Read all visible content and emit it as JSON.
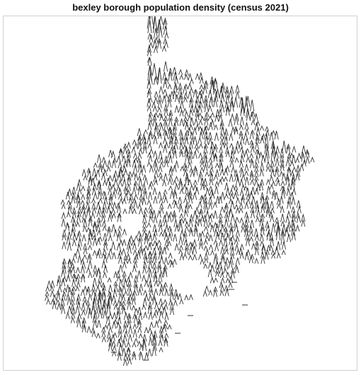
{
  "title": "bexley borough population density (census 2021)",
  "map": {
    "type": "spike-map",
    "stroke_color": "#333333",
    "frame_color": "#d0d0d0"
  }
}
